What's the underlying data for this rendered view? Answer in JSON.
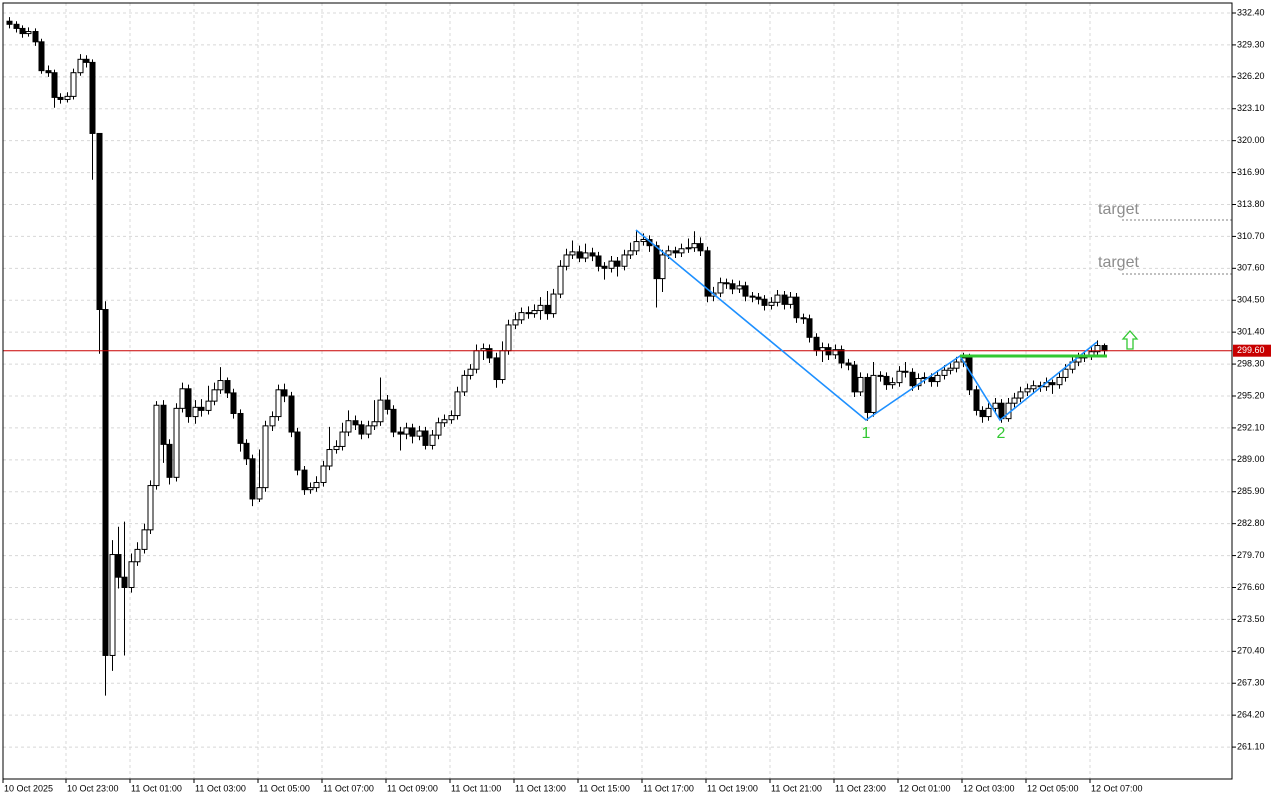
{
  "chart_data": {
    "type": "candlestick",
    "x_labels": [
      "10 Oct 2025",
      "10 Oct 23:00",
      "11 Oct 01:00",
      "11 Oct 03:00",
      "11 Oct 05:00",
      "11 Oct 07:00",
      "11 Oct 09:00",
      "11 Oct 11:00",
      "11 Oct 13:00",
      "11 Oct 15:00",
      "11 Oct 17:00",
      "11 Oct 19:00",
      "11 Oct 21:00",
      "11 Oct 23:00",
      "12 Oct 01:00",
      "12 Oct 03:00",
      "12 Oct 05:00",
      "12 Oct 07:00"
    ],
    "open": [
      331.6,
      331.3,
      330.9,
      330.4,
      330.6,
      329.6,
      326.8,
      326.6,
      324.2,
      324.0,
      324.3,
      326.6,
      327.9,
      327.6,
      320.7,
      303.6,
      270.0,
      279.8,
      277.6,
      276.6,
      279.1,
      280.3,
      282.2,
      286.5,
      294.3,
      290.5,
      287.3,
      294.0,
      295.9,
      293.2,
      294.1,
      293.8,
      294.7,
      295.8,
      296.7,
      295.5,
      293.5,
      290.6,
      289.1,
      285.2,
      286.3,
      292.3,
      293.2,
      295.8,
      295.2,
      291.7,
      288.0,
      286.1,
      286.3,
      286.8,
      288.4,
      290.0,
      290.3,
      291.7,
      292.8,
      292.4,
      291.5,
      292.3,
      292.7,
      294.8,
      293.9,
      291.7,
      291.5,
      292.1,
      291.3,
      291.8,
      290.4,
      291.4,
      292.6,
      292.9,
      293.3,
      295.6,
      297.2,
      297.8,
      299.6,
      299.8,
      298.9,
      296.8,
      299.6,
      302.1,
      302.6,
      303.3,
      303.2,
      303.5,
      304.0,
      303.2,
      305.1,
      307.8,
      308.9,
      309.2,
      308.6,
      309.1,
      308.8,
      307.8,
      307.6,
      308.3,
      307.8,
      308.9,
      309.3,
      310.2,
      310.4,
      309.8,
      306.6,
      308.9,
      309.3,
      309.1,
      309.5,
      309.6,
      310.0,
      309.3,
      304.9,
      305.2,
      306.2,
      306.1,
      305.6,
      305.9,
      304.9,
      304.8,
      304.6,
      304.0,
      304.3,
      305.0,
      304.1,
      304.8,
      302.8,
      302.7,
      300.9,
      299.6,
      299.9,
      299.2,
      299.7,
      298.4,
      298.2,
      295.6,
      297.0,
      293.6,
      297.2,
      297.1,
      296.3,
      296.5,
      297.6,
      297.5,
      296.2,
      296.9,
      297.0,
      296.6,
      297.2,
      297.7,
      297.9,
      298.5,
      298.9,
      295.8,
      293.8,
      293.2,
      294.0,
      294.5,
      293.0,
      294.5,
      295.0,
      295.6,
      295.9,
      296.2,
      296.1,
      296.5,
      296.3,
      297.0,
      297.8,
      298.5,
      298.9,
      299.1,
      299.5,
      300.1
    ],
    "high": [
      332.0,
      331.6,
      331.2,
      331.0,
      330.9,
      329.9,
      327.3,
      326.9,
      324.6,
      324.7,
      327.0,
      328.4,
      328.3,
      327.9,
      320.7,
      304.4,
      281.2,
      282.5,
      283.0,
      279.9,
      281.0,
      282.8,
      287.0,
      294.7,
      294.8,
      291.0,
      294.5,
      296.5,
      296.3,
      294.8,
      294.9,
      296.2,
      296.5,
      298.0,
      297.0,
      295.9,
      293.9,
      291.0,
      289.5,
      290.0,
      292.8,
      293.7,
      296.3,
      296.4,
      295.6,
      292.1,
      288.4,
      286.8,
      287.4,
      288.9,
      292.2,
      290.9,
      292.6,
      293.8,
      293.3,
      292.8,
      292.8,
      294.8,
      297.0,
      295.3,
      294.3,
      292.2,
      292.6,
      292.5,
      292.3,
      292.2,
      291.9,
      293.1,
      293.4,
      293.8,
      296.1,
      297.7,
      298.3,
      300.2,
      300.3,
      300.2,
      299.4,
      300.5,
      302.6,
      303.3,
      303.8,
      303.9,
      304.1,
      304.8,
      305.4,
      305.6,
      308.4,
      309.5,
      310.3,
      309.8,
      310.0,
      309.6,
      309.2,
      308.2,
      308.8,
      308.7,
      309.4,
      310.1,
      311.2,
      311.0,
      310.8,
      310.2,
      309.4,
      309.8,
      309.7,
      310.0,
      310.5,
      311.2,
      310.6,
      309.7,
      305.8,
      306.7,
      306.6,
      306.5,
      306.4,
      306.3,
      305.3,
      305.2,
      305.0,
      304.8,
      305.5,
      305.4,
      305.3,
      305.2,
      303.2,
      303.1,
      301.3,
      300.4,
      300.3,
      300.2,
      300.1,
      298.8,
      298.6,
      297.5,
      297.4,
      298.5,
      297.6,
      297.5,
      297.0,
      298.1,
      298.5,
      297.9,
      297.4,
      297.5,
      297.4,
      297.7,
      298.2,
      298.4,
      299.0,
      299.4,
      299.3,
      296.2,
      294.2,
      294.5,
      295.0,
      294.9,
      295.0,
      295.5,
      296.1,
      296.4,
      296.7,
      296.6,
      297.0,
      296.8,
      297.5,
      298.3,
      299.0,
      299.4,
      299.6,
      300.0,
      300.6,
      300.3
    ],
    "low": [
      330.9,
      330.5,
      330.0,
      330.1,
      329.2,
      326.5,
      326.2,
      323.2,
      323.6,
      323.7,
      324.0,
      326.3,
      327.1,
      316.2,
      299.3,
      266.1,
      268.5,
      276.5,
      270.0,
      276.1,
      278.7,
      279.9,
      281.8,
      286.1,
      288.7,
      286.6,
      286.9,
      293.6,
      292.6,
      292.5,
      293.2,
      293.4,
      294.3,
      295.4,
      295.0,
      293.0,
      289.8,
      288.5,
      284.5,
      284.9,
      285.9,
      291.8,
      292.8,
      294.6,
      291.2,
      287.5,
      285.6,
      285.7,
      285.9,
      286.4,
      288.0,
      289.6,
      289.9,
      291.3,
      291.9,
      291.0,
      291.1,
      291.9,
      292.3,
      293.4,
      291.2,
      289.9,
      291.0,
      290.6,
      290.9,
      290.0,
      290.0,
      291.0,
      292.2,
      292.5,
      292.9,
      295.2,
      296.8,
      297.4,
      298.7,
      298.4,
      296.0,
      296.4,
      299.2,
      301.7,
      302.2,
      302.7,
      302.8,
      302.6,
      302.6,
      302.8,
      304.7,
      307.4,
      308.5,
      308.2,
      308.2,
      308.3,
      307.3,
      306.5,
      307.2,
      306.8,
      307.4,
      308.5,
      308.9,
      309.8,
      309.2,
      303.8,
      305.3,
      308.5,
      308.6,
      308.7,
      309.1,
      309.2,
      308.8,
      304.3,
      304.4,
      304.8,
      305.6,
      305.1,
      305.2,
      304.4,
      304.3,
      304.1,
      303.5,
      303.6,
      303.9,
      303.6,
      303.7,
      302.3,
      302.2,
      300.4,
      299.1,
      298.5,
      298.7,
      298.8,
      297.9,
      297.7,
      295.1,
      295.2,
      292.8,
      293.2,
      296.6,
      295.8,
      295.9,
      296.1,
      297.0,
      295.7,
      295.8,
      296.4,
      296.1,
      296.1,
      296.8,
      297.3,
      297.5,
      298.0,
      295.3,
      293.3,
      292.6,
      292.8,
      293.5,
      292.6,
      292.7,
      294.1,
      294.6,
      295.2,
      295.5,
      295.6,
      295.7,
      295.4,
      295.9,
      296.6,
      297.4,
      298.1,
      298.5,
      298.7,
      299.1,
      299.2
    ],
    "close": [
      331.3,
      330.9,
      330.4,
      330.6,
      329.6,
      326.8,
      326.6,
      324.2,
      324.0,
      324.3,
      326.6,
      327.9,
      327.6,
      320.7,
      303.6,
      270.0,
      279.8,
      277.6,
      276.6,
      279.1,
      280.3,
      282.2,
      286.5,
      294.3,
      290.5,
      287.3,
      294.0,
      295.9,
      293.2,
      294.1,
      293.8,
      294.7,
      295.8,
      296.7,
      295.5,
      293.5,
      290.6,
      289.1,
      285.2,
      286.3,
      292.3,
      293.2,
      295.8,
      295.2,
      291.7,
      288.0,
      286.1,
      286.3,
      286.8,
      288.4,
      290.0,
      290.3,
      291.7,
      292.8,
      292.4,
      291.5,
      292.3,
      292.7,
      294.8,
      293.9,
      291.7,
      291.5,
      292.1,
      291.3,
      291.8,
      290.4,
      291.4,
      292.6,
      292.9,
      293.3,
      295.6,
      297.2,
      297.8,
      299.6,
      299.8,
      298.9,
      296.8,
      299.6,
      302.1,
      302.6,
      303.3,
      303.2,
      303.5,
      304.0,
      303.2,
      305.1,
      307.8,
      308.9,
      309.2,
      308.6,
      309.1,
      308.8,
      307.8,
      307.6,
      308.3,
      307.8,
      308.9,
      309.3,
      310.2,
      310.4,
      309.8,
      306.6,
      308.9,
      309.3,
      309.1,
      309.5,
      309.6,
      310.0,
      309.3,
      304.9,
      305.2,
      306.2,
      306.1,
      305.6,
      305.9,
      304.9,
      304.8,
      304.6,
      304.0,
      304.3,
      305.0,
      304.1,
      304.8,
      302.8,
      302.7,
      300.9,
      299.6,
      299.9,
      299.2,
      299.7,
      298.4,
      298.2,
      295.6,
      297.0,
      293.6,
      297.2,
      297.1,
      296.3,
      296.5,
      297.6,
      297.5,
      296.2,
      296.9,
      297.0,
      296.6,
      297.2,
      297.7,
      297.9,
      298.5,
      298.9,
      295.8,
      293.8,
      293.2,
      294.0,
      294.5,
      293.0,
      294.5,
      295.0,
      295.6,
      295.9,
      296.2,
      296.1,
      296.5,
      296.3,
      297.0,
      297.8,
      298.5,
      298.9,
      299.1,
      299.5,
      300.1,
      299.6
    ],
    "up_color": "#ffffff",
    "down_color": "#000000",
    "ylim": [
      258.0,
      333.37
    ],
    "yticks": [
      {
        "value": 332.4,
        "label": "332.40"
      },
      {
        "value": 329.3,
        "label": "329.30"
      },
      {
        "value": 326.2,
        "label": "326.20"
      },
      {
        "value": 323.1,
        "label": "323.10"
      },
      {
        "value": 320,
        "label": "320.00"
      },
      {
        "value": 316.9,
        "label": "316.90"
      },
      {
        "value": 313.8,
        "label": "313.80"
      },
      {
        "value": 310.7,
        "label": "310.70"
      },
      {
        "value": 307.6,
        "label": "307.60"
      },
      {
        "value": 304.5,
        "label": "304.50"
      },
      {
        "value": 301.4,
        "label": "301.40"
      },
      {
        "value": 298.3,
        "label": "298.30"
      },
      {
        "value": 295.2,
        "label": "295.20"
      },
      {
        "value": 292.1,
        "label": "292.10"
      },
      {
        "value": 289,
        "label": "289.00"
      },
      {
        "value": 285.9,
        "label": "285.90"
      },
      {
        "value": 282.8,
        "label": "282.80"
      },
      {
        "value": 279.7,
        "label": "279.70"
      },
      {
        "value": 276.6,
        "label": "276.60"
      },
      {
        "value": 273.5,
        "label": "273.50"
      },
      {
        "value": 270.4,
        "label": "270.40"
      },
      {
        "value": 267.3,
        "label": "267.30"
      },
      {
        "value": 264.2,
        "label": "264.20"
      },
      {
        "value": 261.1,
        "label": "261.10"
      }
    ],
    "grid": true,
    "current_price": {
      "value": 299.6,
      "label": "299.60",
      "color": "#c80000"
    },
    "annotations": {
      "targets": [
        "target",
        "target"
      ],
      "waves": [
        "1",
        "2"
      ]
    }
  }
}
